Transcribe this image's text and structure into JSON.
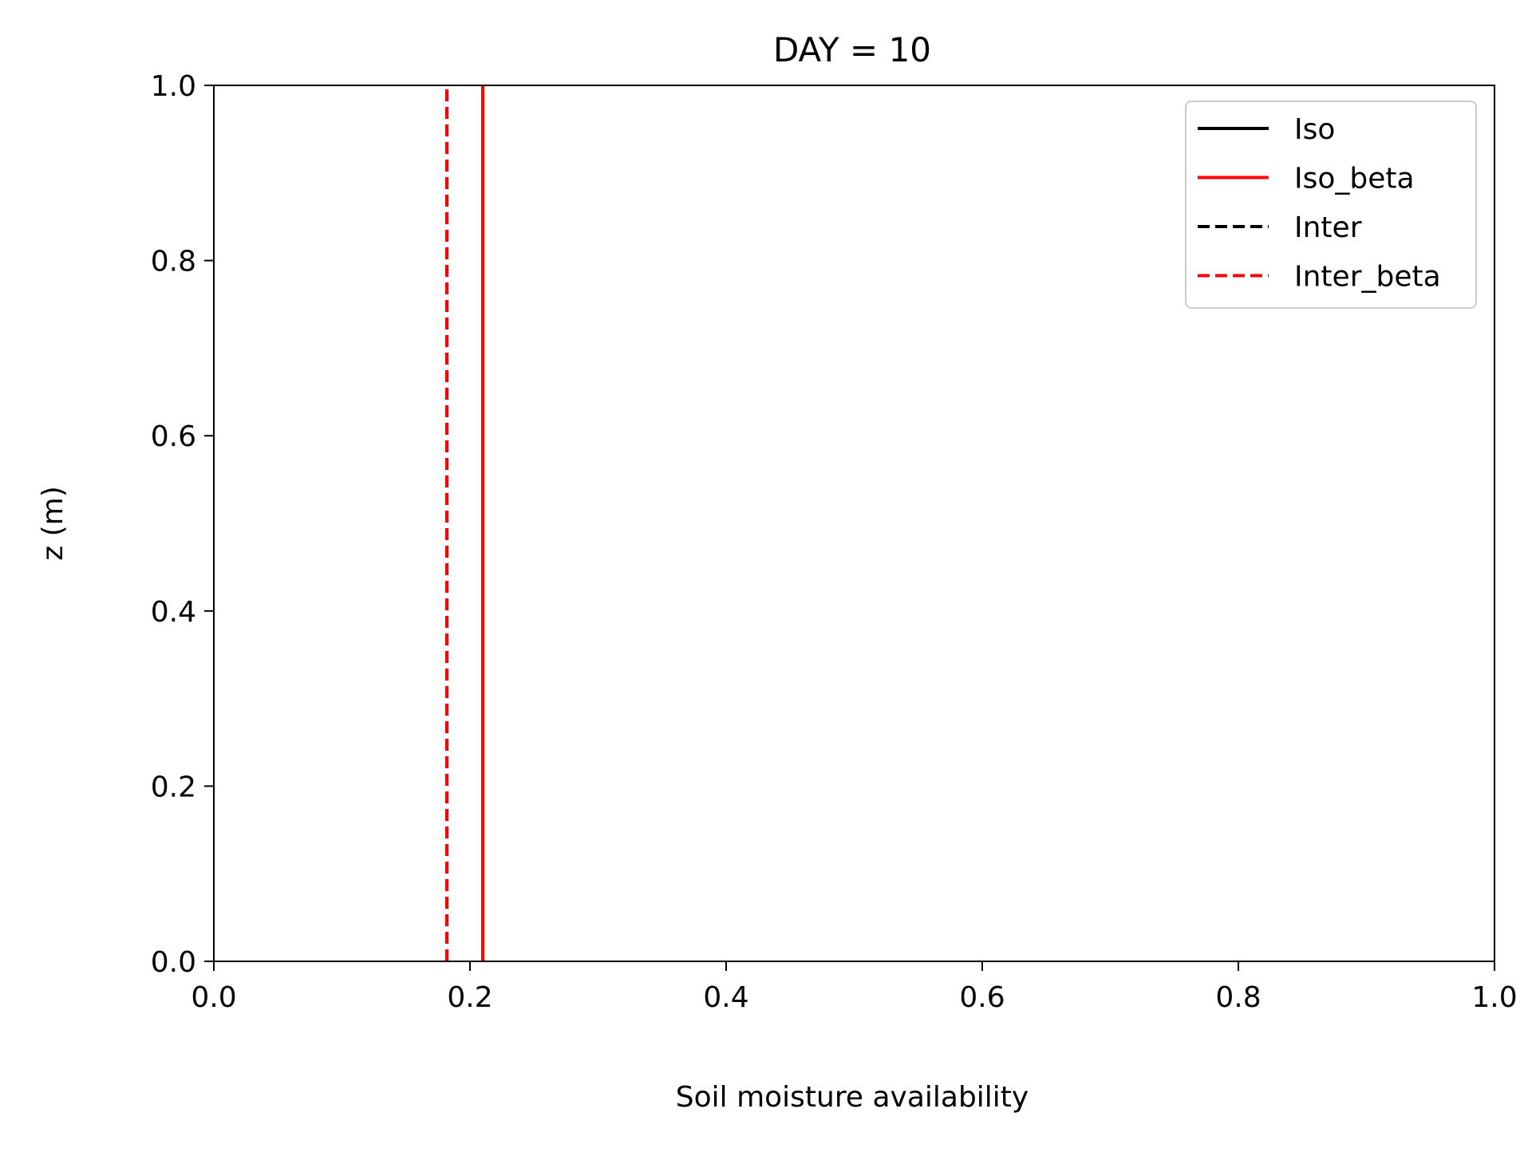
{
  "chart_data": {
    "type": "line",
    "title": "DAY = 10",
    "xlabel": "Soil moisture availability",
    "ylabel": "z (m)",
    "xlim": [
      0.0,
      1.0
    ],
    "ylim": [
      0.0,
      1.0
    ],
    "xticks": [
      "0.0",
      "0.2",
      "0.4",
      "0.6",
      "0.8",
      "1.0"
    ],
    "yticks": [
      "0.0",
      "0.2",
      "0.4",
      "0.6",
      "0.8",
      "1.0"
    ],
    "grid": false,
    "legend_position": "top-right",
    "series": [
      {
        "name": "Iso",
        "color": "#000000",
        "dash": "solid",
        "points": [
          [
            0.21,
            0.0
          ],
          [
            0.21,
            1.0
          ]
        ]
      },
      {
        "name": "Iso_beta",
        "color": "#ff0000",
        "dash": "solid",
        "points": [
          [
            0.21,
            0.0
          ],
          [
            0.21,
            1.0
          ]
        ]
      },
      {
        "name": "Inter",
        "color": "#000000",
        "dash": "dashed",
        "points": [
          [
            0.182,
            0.0
          ],
          [
            0.182,
            1.0
          ]
        ]
      },
      {
        "name": "Inter_beta",
        "color": "#ff0000",
        "dash": "dashed",
        "points": [
          [
            0.182,
            0.0
          ],
          [
            0.182,
            1.0
          ]
        ]
      }
    ]
  }
}
